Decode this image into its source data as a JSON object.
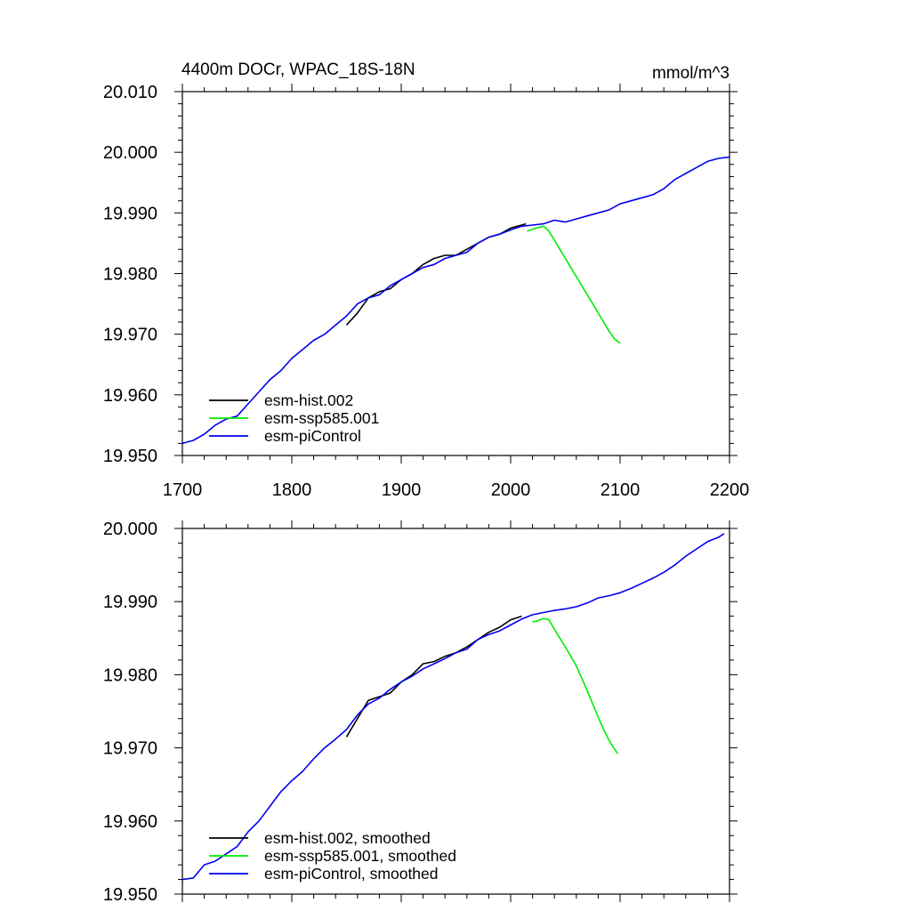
{
  "figure": {
    "title_left": "4400m DOCr, WPAC_18S-18N",
    "title_right": "mmol/m^3"
  },
  "colors": {
    "hist": "#000000",
    "ssp585": "#00ee00",
    "piControl": "#0000ee"
  },
  "chart_data": [
    {
      "type": "line",
      "panel": "top",
      "title": "4400m DOCr, WPAC_18S-18N",
      "units_label": "mmol/m^3",
      "xlim": [
        1700,
        2200
      ],
      "ylim": [
        19.95,
        20.01
      ],
      "x_ticks": [
        1700,
        1800,
        1900,
        2000,
        2100,
        2200
      ],
      "x_tick_labels": [
        "1700",
        "1800",
        "1900",
        "2000",
        "2100",
        "2200"
      ],
      "y_ticks": [
        19.95,
        19.96,
        19.97,
        19.98,
        19.99,
        20.0,
        20.01
      ],
      "y_tick_labels": [
        "19.950",
        "19.960",
        "19.970",
        "19.980",
        "19.990",
        "20.000",
        "20.010"
      ],
      "legend": "bottom-left",
      "grid": false,
      "series": [
        {
          "name": "esm-hist.002",
          "color": "#000000",
          "x": [
            1850,
            1860,
            1870,
            1880,
            1890,
            1900,
            1910,
            1920,
            1930,
            1940,
            1950,
            1960,
            1970,
            1980,
            1990,
            2000,
            2010,
            2014
          ],
          "y": [
            19.9715,
            19.9735,
            19.976,
            19.977,
            19.9775,
            19.979,
            19.98,
            19.9815,
            19.9825,
            19.983,
            19.983,
            19.984,
            19.985,
            19.986,
            19.9865,
            19.9875,
            19.988,
            19.9882
          ]
        },
        {
          "name": "esm-ssp585.001",
          "color": "#00ee00",
          "x": [
            2015,
            2020,
            2025,
            2030,
            2035,
            2040,
            2045,
            2050,
            2055,
            2060,
            2065,
            2070,
            2075,
            2080,
            2085,
            2090,
            2095,
            2100
          ],
          "y": [
            19.987,
            19.9873,
            19.9876,
            19.9878,
            19.987,
            19.9855,
            19.984,
            19.9825,
            19.981,
            19.9795,
            19.978,
            19.9765,
            19.975,
            19.9735,
            19.972,
            19.9705,
            19.9692,
            19.9685
          ]
        },
        {
          "name": "esm-piControl",
          "color": "#0000ee",
          "x": [
            1700,
            1710,
            1720,
            1730,
            1740,
            1750,
            1760,
            1770,
            1780,
            1790,
            1800,
            1810,
            1820,
            1830,
            1840,
            1850,
            1860,
            1870,
            1880,
            1890,
            1900,
            1910,
            1920,
            1930,
            1940,
            1950,
            1960,
            1970,
            1980,
            1990,
            2000,
            2010,
            2020,
            2030,
            2040,
            2050,
            2060,
            2070,
            2080,
            2090,
            2100,
            2110,
            2120,
            2130,
            2140,
            2150,
            2160,
            2170,
            2180,
            2190,
            2200
          ],
          "y": [
            19.952,
            19.9525,
            19.9535,
            19.955,
            19.956,
            19.9565,
            19.9585,
            19.9605,
            19.9625,
            19.964,
            19.966,
            19.9675,
            19.969,
            19.97,
            19.9715,
            19.973,
            19.975,
            19.976,
            19.9765,
            19.978,
            19.979,
            19.98,
            19.981,
            19.9815,
            19.9825,
            19.983,
            19.9835,
            19.985,
            19.986,
            19.9865,
            19.9872,
            19.9878,
            19.988,
            19.9882,
            19.9888,
            19.9885,
            19.989,
            19.9895,
            19.99,
            19.9905,
            19.9915,
            19.992,
            19.9925,
            19.993,
            19.994,
            19.9955,
            19.9965,
            19.9975,
            19.9985,
            19.999,
            19.9992
          ]
        }
      ]
    },
    {
      "type": "line",
      "panel": "bottom",
      "xlim": [
        1700,
        2200
      ],
      "ylim": [
        19.95,
        20.0
      ],
      "x_ticks": [
        1700,
        1800,
        1900,
        2000,
        2100,
        2200
      ],
      "y_ticks": [
        19.95,
        19.96,
        19.97,
        19.98,
        19.99,
        20.0
      ],
      "y_tick_labels": [
        "19.950",
        "19.960",
        "19.970",
        "19.980",
        "19.990",
        "20.000"
      ],
      "legend": "bottom-left",
      "grid": false,
      "series": [
        {
          "name": "esm-hist.002, smoothed",
          "color": "#000000",
          "x": [
            1850,
            1860,
            1870,
            1880,
            1890,
            1900,
            1910,
            1920,
            1930,
            1940,
            1950,
            1960,
            1970,
            1980,
            1990,
            2000,
            2010
          ],
          "y": [
            19.9715,
            19.974,
            19.9765,
            19.977,
            19.9775,
            19.979,
            19.98,
            19.9815,
            19.9818,
            19.9825,
            19.983,
            19.9838,
            19.9848,
            19.9858,
            19.9865,
            19.9875,
            19.988
          ]
        },
        {
          "name": "esm-ssp585.001, smoothed",
          "color": "#00ee00",
          "x": [
            2020,
            2025,
            2030,
            2035,
            2040,
            2045,
            2050,
            2055,
            2060,
            2065,
            2070,
            2075,
            2080,
            2085,
            2090,
            2095,
            2098
          ],
          "y": [
            19.9872,
            19.9874,
            19.9877,
            19.9875,
            19.9862,
            19.985,
            19.9838,
            19.9825,
            19.9812,
            19.9795,
            19.9778,
            19.976,
            19.9742,
            19.9725,
            19.971,
            19.9698,
            19.9692
          ]
        },
        {
          "name": "esm-piControl, smoothed",
          "color": "#0000ee",
          "x": [
            1700,
            1710,
            1720,
            1730,
            1740,
            1750,
            1760,
            1770,
            1780,
            1790,
            1800,
            1810,
            1820,
            1830,
            1840,
            1850,
            1860,
            1870,
            1880,
            1890,
            1900,
            1910,
            1920,
            1930,
            1940,
            1950,
            1960,
            1970,
            1980,
            1990,
            2000,
            2010,
            2020,
            2030,
            2040,
            2050,
            2060,
            2070,
            2080,
            2090,
            2100,
            2110,
            2120,
            2130,
            2140,
            2150,
            2160,
            2170,
            2180,
            2190,
            2195
          ],
          "y": [
            19.952,
            19.9522,
            19.954,
            19.9545,
            19.9555,
            19.9565,
            19.9585,
            19.96,
            19.962,
            19.964,
            19.9655,
            19.9668,
            19.9685,
            19.97,
            19.9712,
            19.9725,
            19.9745,
            19.976,
            19.9768,
            19.978,
            19.979,
            19.9798,
            19.9808,
            19.9815,
            19.9822,
            19.983,
            19.9835,
            19.9848,
            19.9855,
            19.986,
            19.9868,
            19.9876,
            19.9882,
            19.9885,
            19.9888,
            19.989,
            19.9893,
            19.9898,
            19.9905,
            19.9908,
            19.9912,
            19.9918,
            19.9925,
            19.9932,
            19.994,
            19.995,
            19.9962,
            19.9972,
            19.9982,
            19.9988,
            19.9993
          ]
        }
      ]
    }
  ]
}
